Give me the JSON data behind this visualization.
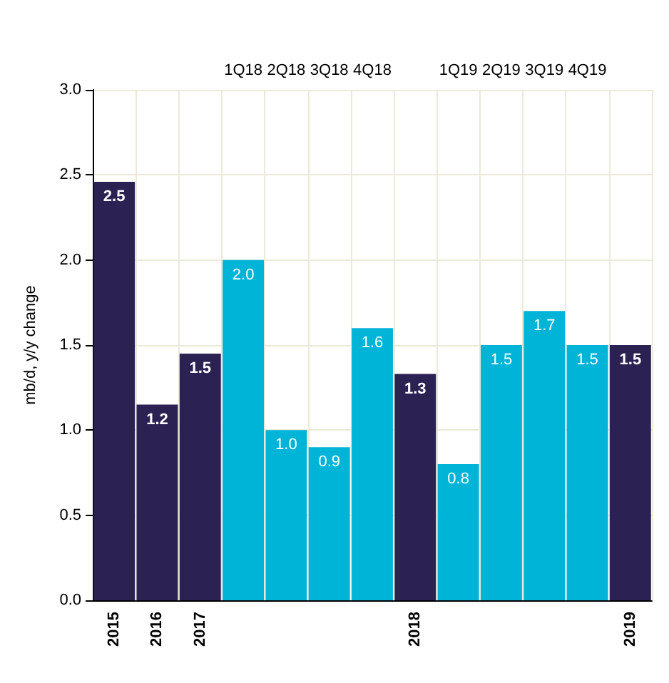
{
  "chart_data": {
    "type": "bar",
    "ylabel": "mb/d, y/y change",
    "categories": [
      "2015",
      "2016",
      "2017",
      "1Q18",
      "2Q18",
      "3Q18",
      "4Q18",
      "2018",
      "1Q19",
      "2Q19",
      "3Q19",
      "4Q19",
      "2019"
    ],
    "series": [
      {
        "color": "#2b2152",
        "values": [
          2.46,
          1.15,
          1.45,
          null,
          null,
          null,
          null,
          1.33,
          null,
          null,
          null,
          null,
          1.5
        ],
        "value_labels": [
          "2.5",
          "1.2",
          "1.5",
          null,
          null,
          null,
          null,
          "1.3",
          null,
          null,
          null,
          null,
          "1.5"
        ]
      },
      {
        "color": "#00b4d8",
        "values": [
          null,
          null,
          null,
          2.0,
          1.0,
          0.9,
          1.6,
          null,
          0.8,
          1.5,
          1.7,
          1.5,
          null
        ],
        "value_labels": [
          null,
          null,
          null,
          "2.0",
          "1.0",
          "0.9",
          "1.6",
          null,
          "0.8",
          "1.5",
          "1.7",
          "1.5",
          null
        ]
      }
    ],
    "stacked": true,
    "ylim": [
      0,
      3
    ],
    "yticks": [
      {
        "value": 0,
        "label": "0.0"
      },
      {
        "value": 0.5,
        "label": "0.5"
      },
      {
        "value": 1,
        "label": "1.0"
      },
      {
        "value": 1.5,
        "label": "1.5"
      },
      {
        "value": 2,
        "label": "2.0"
      },
      {
        "value": 2.5,
        "label": "2.5"
      },
      {
        "value": 3,
        "label": "3.0"
      }
    ],
    "grid": true
  }
}
